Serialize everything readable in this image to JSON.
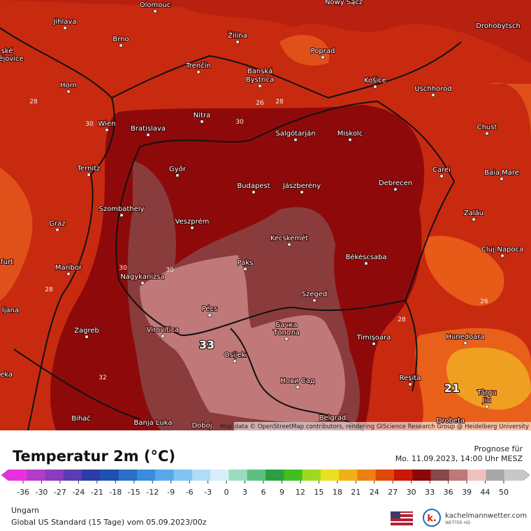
{
  "map": {
    "attribution": "Map data © OpenStreetMap contributors, rendering GIScience Research Group @ Heidelberg University",
    "cities": [
      "Olomouc",
      "Nowy Sącz",
      "Jihlava",
      "Brno",
      "Žilina",
      "Poprad",
      "Drohobytsch",
      "ské",
      "ějovice",
      "Trenčín",
      "Banská",
      "Bystrica",
      "Košice",
      "Uschhorod",
      "Horn",
      "Nitra",
      "Wien",
      "Bratislava",
      "Salgótarján",
      "Miskolc",
      "Chust",
      "Ternitz",
      "Győr",
      "Carei",
      "Baia Mare",
      "Budapest",
      "Jászberény",
      "Debrecen",
      "Szombathely",
      "Zalău",
      "Graz",
      "Veszprém",
      "Kecskemét",
      "Cluj-Napoca",
      "furt",
      "Paks",
      "Békéscsaba",
      "Maribor",
      "Nagykanizsa",
      "Szeged",
      "ljana",
      "Pécs",
      "Zagreb",
      "Бачка",
      "Топола",
      "Virovitica",
      "Timișoara",
      "Hunedoara",
      "Osijek",
      "eka",
      "Reșita",
      "Нови Сад",
      "Târgu",
      "Jiu",
      "Bihać",
      "Banja Luka",
      "Doboj",
      "Belgrad",
      "Drobeta"
    ],
    "contour_labels": [
      "28",
      "26",
      "30",
      "30",
      "28",
      "30",
      "30",
      "32",
      "28",
      "26",
      "28"
    ],
    "highlight_values": [
      "33",
      "21"
    ]
  },
  "legend": {
    "title": "Temperatur 2m (°C)",
    "ticks": [
      -36,
      -30,
      -27,
      -24,
      -21,
      -18,
      -15,
      -12,
      -9,
      -6,
      -3,
      0,
      3,
      6,
      9,
      12,
      15,
      18,
      21,
      24,
      27,
      30,
      33,
      36,
      39,
      44,
      50
    ],
    "colors": [
      "#e830e0",
      "#b23cc8",
      "#8a3cc0",
      "#5a3cb4",
      "#2c3ca8",
      "#1e50b4",
      "#2a6ec8",
      "#3a8cdc",
      "#5aa8ec",
      "#80c4f4",
      "#b0dcf8",
      "#d8eefa",
      "#9adcc0",
      "#5cc080",
      "#2ca040",
      "#40c020",
      "#a0d820",
      "#e8e020",
      "#f0b018",
      "#ec8010",
      "#e04808",
      "#c81808",
      "#8c0808",
      "#8a4848",
      "#c07878",
      "#f0c0c0",
      "#a8a8a8",
      "#c8c8c8"
    ]
  },
  "header": {
    "forecast_label": "Prognose für",
    "forecast_time": "Mo. 11.09.2023, 14:00 Uhr MESZ"
  },
  "footer": {
    "region": "Ungarn",
    "model": "Global US Standard (15 Tage) vom  05.09.2023/00z",
    "brand": "kachelmannwetter.com",
    "brand_sub": "WETTER HD"
  }
}
